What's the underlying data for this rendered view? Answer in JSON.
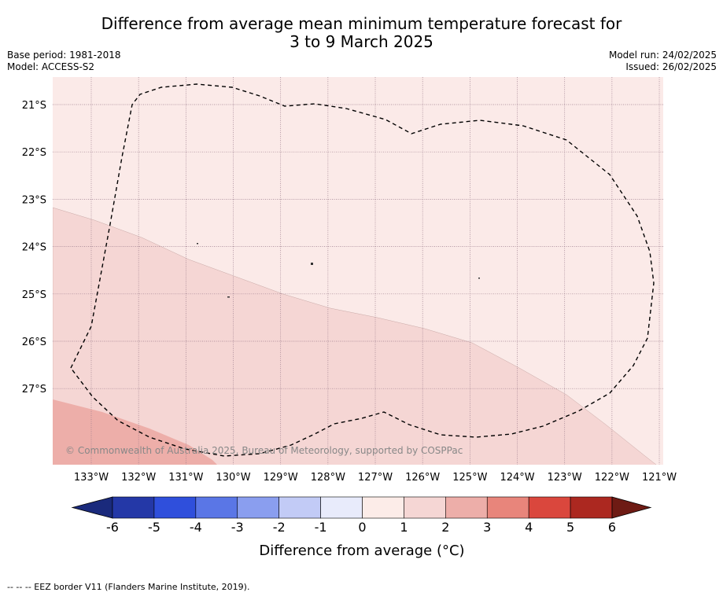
{
  "title": {
    "line1": "Difference from average mean minimum temperature forecast for",
    "line2": "3 to 9 March 2025"
  },
  "header_left": {
    "base_period": "Base period: 1981-2018",
    "model": "Model: ACCESS-S2"
  },
  "header_right": {
    "model_run": "Model run: 24/02/2025",
    "issued": "Issued: 26/02/2025"
  },
  "map": {
    "lat_labels": [
      "21°S",
      "22°S",
      "23°S",
      "24°S",
      "25°S",
      "26°S",
      "27°S"
    ],
    "lon_labels": [
      "133°W",
      "132°W",
      "131°W",
      "130°W",
      "129°W",
      "128°W",
      "127°W",
      "126°W",
      "125°W",
      "124°W",
      "123°W",
      "122°W",
      "121°W"
    ],
    "watermark": "© Commonwealth of Australia 2025, Bureau of Meteorology, supported by COSPPac",
    "region_colors": {
      "zero_to_one": "#fbeae8",
      "one_to_two": "#f5d6d4",
      "two_to_three": "#edaea9"
    }
  },
  "colorbar": {
    "ticks": [
      "-6",
      "-5",
      "-4",
      "-3",
      "-2",
      "-1",
      "0",
      "1",
      "2",
      "3",
      "4",
      "5",
      "6"
    ],
    "colors": [
      "#2438a7",
      "#2f4fdc",
      "#5a76e6",
      "#8a9eef",
      "#c2cbf6",
      "#e8ebfb",
      "#fcece8",
      "#f5d6d4",
      "#edaea9",
      "#e8857b",
      "#da473d",
      "#ac2820"
    ],
    "extend_low_color": "#1a2a7c",
    "extend_high_color": "#6e1b14",
    "label": "Difference from average (°C)"
  },
  "footer": {
    "legend_text": "--  --  -- EEZ border V11 (Flanders Marine Institute, 2019)."
  }
}
